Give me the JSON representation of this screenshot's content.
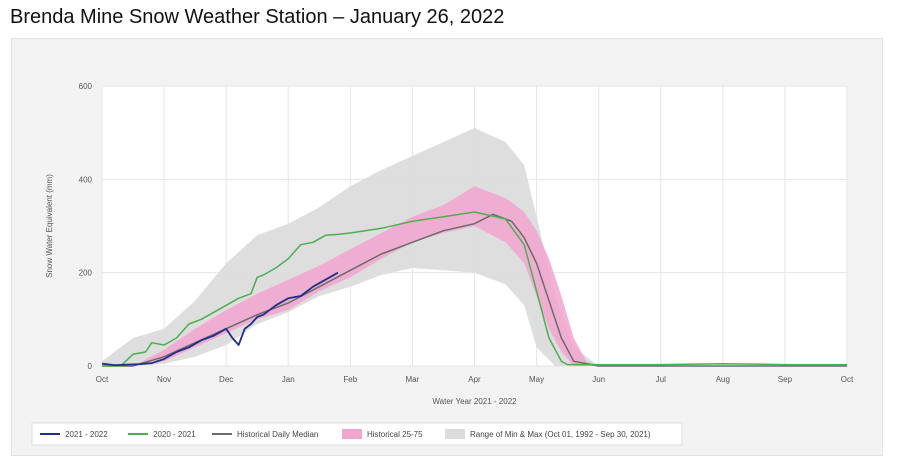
{
  "page": {
    "title": "Brenda Mine Snow Weather Station – January 26, 2022"
  },
  "chart_data": {
    "type": "area",
    "title": "",
    "xlabel": "Water Year 2021 - 2022",
    "ylabel": "Snow Water Equivalent (mm)",
    "ylim": [
      0,
      600
    ],
    "yticks": [
      0,
      200,
      400,
      600
    ],
    "x_ticks": [
      "Oct",
      "Nov",
      "Dec",
      "Jan",
      "Feb",
      "Mar",
      "Apr",
      "May",
      "Jun",
      "Jul",
      "Aug",
      "Sep",
      "Oct"
    ],
    "grid": true,
    "legend_position": "bottom",
    "colors": {
      "series_2021_2022": "#1f2f8a",
      "series_2020_2021": "#4caf50",
      "median": "#6b6b6b",
      "band_25_75": "#f2a6cf",
      "band_min_max": "#dcdcdc",
      "plot_background": "#ffffff",
      "frame_background": "#f3f3f3",
      "grid": "#e6e6e6"
    },
    "bands": [
      {
        "name": "Range of Min & Max (Oct 01, 1992 - Sep 30, 2021)",
        "color": "#dcdcdc",
        "x": [
          0,
          0.5,
          1,
          1.5,
          2,
          2.5,
          3,
          3.5,
          4,
          4.5,
          5,
          5.5,
          6,
          6.5,
          6.8,
          7,
          7.3,
          7.6,
          8,
          12
        ],
        "lower": [
          0,
          0,
          5,
          20,
          45,
          90,
          115,
          150,
          170,
          195,
          210,
          205,
          200,
          175,
          130,
          40,
          0,
          0,
          0,
          0
        ],
        "upper": [
          10,
          60,
          80,
          140,
          220,
          280,
          305,
          340,
          385,
          420,
          450,
          480,
          510,
          480,
          430,
          320,
          150,
          40,
          0,
          0
        ]
      },
      {
        "name": "Historical 25-75",
        "color": "#f2a6cf",
        "x": [
          0,
          0.5,
          1,
          1.5,
          2,
          2.5,
          3,
          3.5,
          4,
          4.5,
          5,
          5.5,
          6,
          6.5,
          6.8,
          7,
          7.2,
          7.4,
          7.6,
          7.8,
          8,
          12
        ],
        "lower": [
          0,
          0,
          10,
          40,
          70,
          100,
          120,
          160,
          190,
          230,
          265,
          285,
          300,
          265,
          220,
          150,
          80,
          30,
          0,
          0,
          0,
          0
        ],
        "upper": [
          0,
          0,
          35,
          80,
          120,
          155,
          185,
          215,
          250,
          285,
          320,
          345,
          385,
          360,
          330,
          290,
          230,
          150,
          60,
          10,
          0,
          0
        ]
      }
    ],
    "series": [
      {
        "name": "2021 - 2022",
        "color": "#1f2f8a",
        "x": [
          0,
          0.2,
          0.4,
          0.6,
          0.8,
          1.0,
          1.2,
          1.4,
          1.6,
          1.8,
          2.0,
          2.1,
          2.2,
          2.3,
          2.4,
          2.5,
          2.6,
          2.8,
          3.0,
          3.2,
          3.4,
          3.6,
          3.8
        ],
        "values": [
          5,
          2,
          3,
          4,
          6,
          15,
          30,
          40,
          55,
          65,
          80,
          60,
          45,
          80,
          90,
          105,
          110,
          130,
          145,
          150,
          170,
          185,
          200
        ]
      },
      {
        "name": "2020 - 2021",
        "color": "#4caf50",
        "x": [
          0,
          0.3,
          0.5,
          0.7,
          0.8,
          1.0,
          1.2,
          1.4,
          1.6,
          1.8,
          2.0,
          2.2,
          2.4,
          2.5,
          2.6,
          2.8,
          3.0,
          3.2,
          3.4,
          3.6,
          3.8,
          4.0,
          4.5,
          5.0,
          5.5,
          6.0,
          6.5,
          6.8,
          7.0,
          7.2,
          7.4,
          7.5,
          8,
          9,
          10,
          11,
          12
        ],
        "values": [
          0,
          0,
          25,
          30,
          50,
          45,
          60,
          90,
          100,
          115,
          130,
          145,
          155,
          190,
          195,
          210,
          230,
          260,
          265,
          280,
          282,
          285,
          295,
          310,
          320,
          330,
          315,
          260,
          160,
          60,
          10,
          3,
          3,
          3,
          5,
          3,
          3
        ]
      },
      {
        "name": "Historical Daily Median",
        "color": "#6b6b6b",
        "x": [
          0,
          0.5,
          1,
          1.5,
          2,
          2.5,
          3,
          3.5,
          4,
          4.5,
          5,
          5.5,
          6,
          6.3,
          6.6,
          6.8,
          7.0,
          7.2,
          7.4,
          7.6,
          8,
          12
        ],
        "values": [
          0,
          0,
          20,
          50,
          80,
          110,
          135,
          170,
          205,
          240,
          265,
          290,
          305,
          325,
          310,
          275,
          220,
          140,
          60,
          10,
          0,
          0
        ]
      }
    ],
    "legend": [
      {
        "label": "2021 - 2022",
        "kind": "line",
        "color": "#1f2f8a"
      },
      {
        "label": "2020 - 2021",
        "kind": "line",
        "color": "#4caf50"
      },
      {
        "label": "Historical Daily Median",
        "kind": "line",
        "color": "#6b6b6b"
      },
      {
        "label": "Historical 25-75",
        "kind": "band",
        "color": "#f2a6cf"
      },
      {
        "label": "Range of Min & Max (Oct 01, 1992 - Sep 30, 2021)",
        "kind": "band",
        "color": "#dcdcdc"
      }
    ]
  }
}
